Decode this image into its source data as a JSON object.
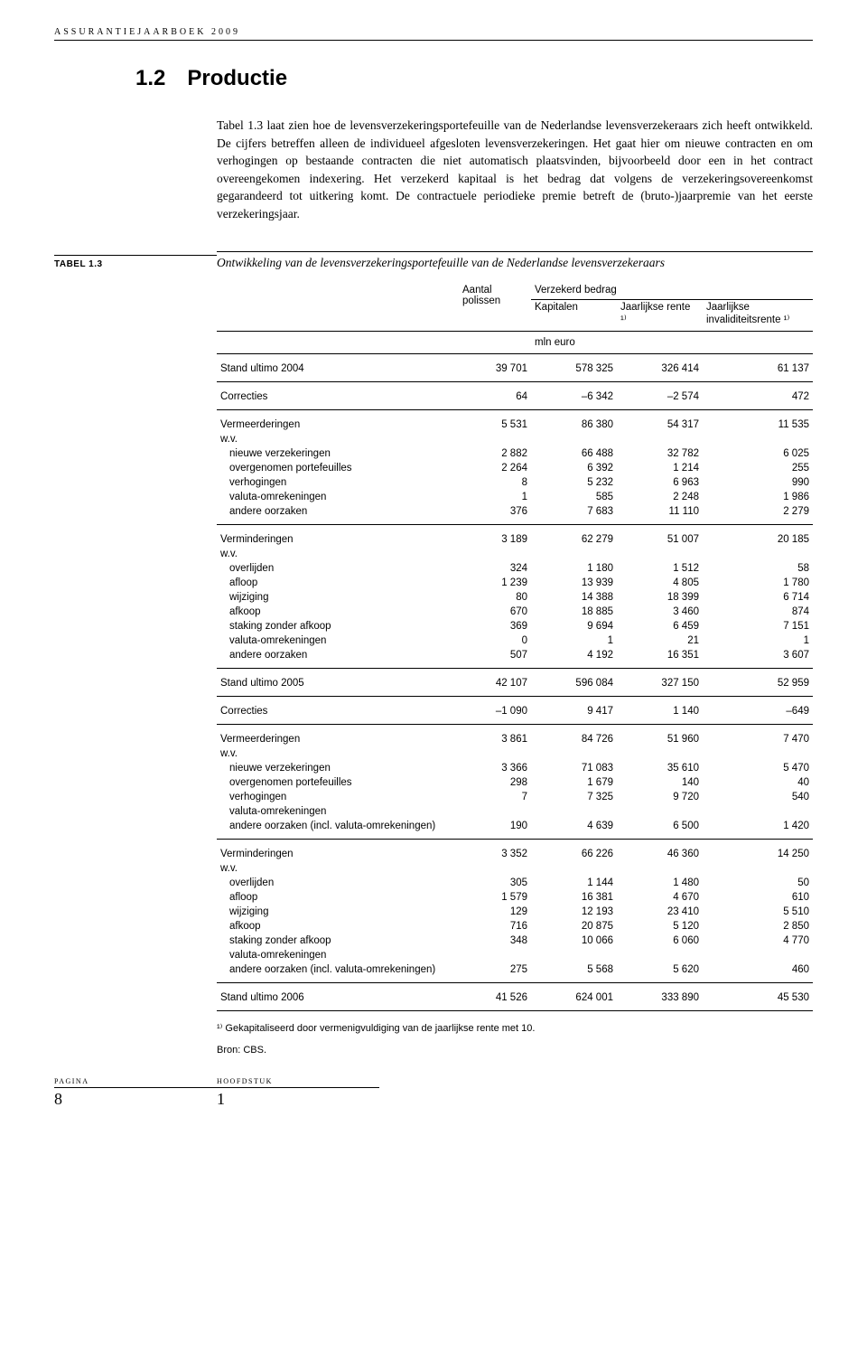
{
  "running_head": "ASSURANTIEJAARBOEK 2009",
  "section": {
    "number": "1.2",
    "title": "Productie"
  },
  "body_paragraph": "Tabel 1.3 laat zien hoe de levensverzekeringsportefeuille van de Nederlandse levensverzekeraars zich heeft ontwikkeld. De cijfers betreffen alleen de individueel afgesloten levensverzekeringen. Het gaat hier om nieuwe contracten en om verhogingen op bestaande contracten die niet automatisch plaatsvinden, bijvoorbeeld door een in het contract overeengekomen indexering. Het verzekerd kapitaal is het bedrag dat volgens de verzekeringsovereenkomst gegarandeerd tot uitkering komt. De contractuele periodieke premie betreft de (bruto-)jaarpremie van het eerste verzekeringsjaar.",
  "table": {
    "label": "TABEL 1.3",
    "caption": "Ontwikkeling van de levensverzekeringsportefeuille van de Nederlandse levensverzekeraars",
    "headers": {
      "col1": "Aantal polissen",
      "super": "Verzekerd bedrag",
      "col2": "Kapitalen",
      "col3": "Jaarlijkse rente ¹⁾",
      "col4": "Jaarlijkse invaliditeitsrente ¹⁾",
      "unit": "mln euro"
    },
    "rows": [
      {
        "l": "Stand ultimo 2004",
        "c": [
          "39 701",
          "578 325",
          "326 414",
          "61 137"
        ],
        "s": true,
        "r": true
      },
      {
        "l": "Correcties",
        "c": [
          "64",
          "–6 342",
          "–2 574",
          "472"
        ],
        "s": true,
        "r": true
      },
      {
        "l": "Vermeerderingen",
        "c": [
          "5 531",
          "86 380",
          "54 317",
          "11 535"
        ],
        "s": true
      },
      {
        "l": "w.v.",
        "c": [
          "",
          "",
          "",
          ""
        ]
      },
      {
        "l": "nieuwe verzekeringen",
        "c": [
          "2 882",
          "66 488",
          "32 782",
          "6 025"
        ],
        "i": true
      },
      {
        "l": "overgenomen portefeuilles",
        "c": [
          "2 264",
          "6 392",
          "1 214",
          "255"
        ],
        "i": true
      },
      {
        "l": "verhogingen",
        "c": [
          "8",
          "5 232",
          "6 963",
          "990"
        ],
        "i": true
      },
      {
        "l": "valuta-omrekeningen",
        "c": [
          "1",
          "585",
          "2 248",
          "1 986"
        ],
        "i": true
      },
      {
        "l": "andere oorzaken",
        "c": [
          "376",
          "7 683",
          "11 110",
          "2 279"
        ],
        "i": true,
        "r": true
      },
      {
        "l": "Verminderingen",
        "c": [
          "3 189",
          "62 279",
          "51 007",
          "20 185"
        ],
        "s": true
      },
      {
        "l": "w.v.",
        "c": [
          "",
          "",
          "",
          ""
        ]
      },
      {
        "l": "overlijden",
        "c": [
          "324",
          "1 180",
          "1 512",
          "58"
        ],
        "i": true
      },
      {
        "l": "afloop",
        "c": [
          "1 239",
          "13 939",
          "4 805",
          "1 780"
        ],
        "i": true
      },
      {
        "l": "wijziging",
        "c": [
          "80",
          "14 388",
          "18 399",
          "6 714"
        ],
        "i": true
      },
      {
        "l": "afkoop",
        "c": [
          "670",
          "18 885",
          "3 460",
          "874"
        ],
        "i": true
      },
      {
        "l": "staking zonder afkoop",
        "c": [
          "369",
          "9 694",
          "6 459",
          "7 151"
        ],
        "i": true
      },
      {
        "l": "valuta-omrekeningen",
        "c": [
          "0",
          "1",
          "21",
          "1"
        ],
        "i": true
      },
      {
        "l": "andere oorzaken",
        "c": [
          "507",
          "4 192",
          "16 351",
          "3 607"
        ],
        "i": true,
        "r": true
      },
      {
        "l": "Stand ultimo 2005",
        "c": [
          "42 107",
          "596 084",
          "327 150",
          "52 959"
        ],
        "s": true,
        "r": true
      },
      {
        "l": "Correcties",
        "c": [
          "–1 090",
          "9 417",
          "1 140",
          "–649"
        ],
        "s": true,
        "r": true
      },
      {
        "l": "Vermeerderingen",
        "c": [
          "3 861",
          "84 726",
          "51 960",
          "7 470"
        ],
        "s": true
      },
      {
        "l": "w.v.",
        "c": [
          "",
          "",
          "",
          ""
        ]
      },
      {
        "l": "nieuwe verzekeringen",
        "c": [
          "3 366",
          "71 083",
          "35 610",
          "5 470"
        ],
        "i": true
      },
      {
        "l": "overgenomen portefeuilles",
        "c": [
          "298",
          "1 679",
          "140",
          "40"
        ],
        "i": true
      },
      {
        "l": "verhogingen",
        "c": [
          "7",
          "7 325",
          "9 720",
          "540"
        ],
        "i": true
      },
      {
        "l": "valuta-omrekeningen",
        "c": [
          "",
          "",
          "",
          ""
        ],
        "i": true
      },
      {
        "l": "andere oorzaken (incl. valuta-omrekeningen)",
        "c": [
          "190",
          "4 639",
          "6 500",
          "1 420"
        ],
        "i": true,
        "r": true
      },
      {
        "l": "Verminderingen",
        "c": [
          "3 352",
          "66 226",
          "46 360",
          "14 250"
        ],
        "s": true
      },
      {
        "l": "w.v.",
        "c": [
          "",
          "",
          "",
          ""
        ]
      },
      {
        "l": "overlijden",
        "c": [
          "305",
          "1 144",
          "1 480",
          "50"
        ],
        "i": true
      },
      {
        "l": "afloop",
        "c": [
          "1 579",
          "16 381",
          "4 670",
          "610"
        ],
        "i": true
      },
      {
        "l": "wijziging",
        "c": [
          "129",
          "12 193",
          "23 410",
          "5 510"
        ],
        "i": true
      },
      {
        "l": "afkoop",
        "c": [
          "716",
          "20 875",
          "5 120",
          "2 850"
        ],
        "i": true
      },
      {
        "l": "staking zonder afkoop",
        "c": [
          "348",
          "10 066",
          "6 060",
          "4 770"
        ],
        "i": true
      },
      {
        "l": "valuta-omrekeningen",
        "c": [
          "",
          "",
          "",
          ""
        ],
        "i": true
      },
      {
        "l": "andere oorzaken (incl. valuta-omrekeningen)",
        "c": [
          "275",
          "5 568",
          "5 620",
          "460"
        ],
        "i": true,
        "r": true
      },
      {
        "l": "Stand ultimo 2006",
        "c": [
          "41 526",
          "624 001",
          "333 890",
          "45 530"
        ],
        "s": true,
        "r": true
      }
    ],
    "footnote": "¹⁾ Gekapitaliseerd door vermenigvuldiging van de jaarlijkse rente met 10.",
    "source": "Bron: CBS."
  },
  "footer": {
    "pagina_label": "PAGINA",
    "pagina_value": "8",
    "hoofdstuk_label": "HOOFDSTUK",
    "hoofdstuk_value": "1"
  }
}
